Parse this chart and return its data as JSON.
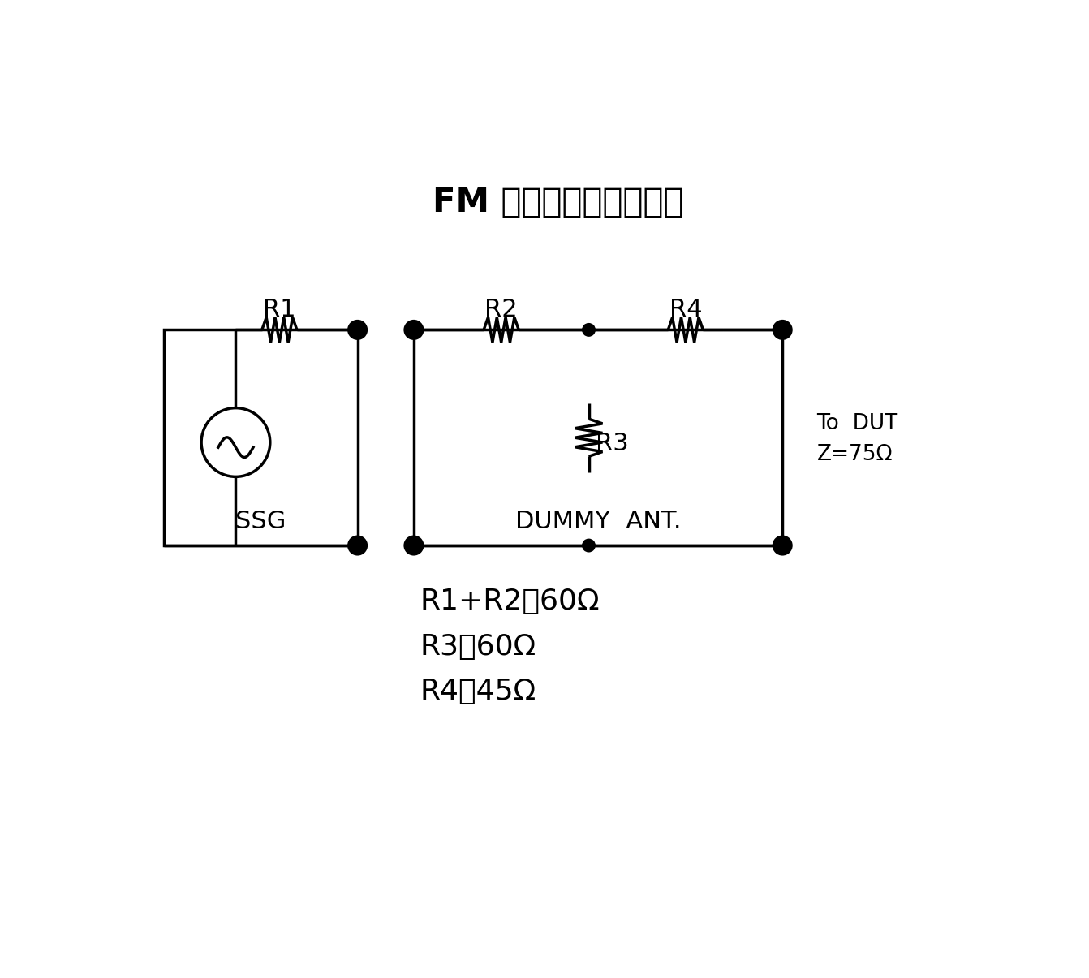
{
  "title": "FM ダミーアンテナ回路",
  "title_fontsize": 30,
  "bg_color": "#ffffff",
  "line_color": "#000000",
  "line_width": 2.5,
  "formula_lines": [
    "R1+R2＝60Ω",
    "R3＝60Ω",
    "R4＝45Ω"
  ],
  "formula_fontsize": 26,
  "ssg_label": "SSG",
  "dummy_label": "DUMMY  ANT.",
  "dut_line1": "To  DUT",
  "dut_line2": "Z=75Ω",
  "r1_label": "R1",
  "r2_label": "R2",
  "r3_label": "R3",
  "r4_label": "R4",
  "label_fontsize": 22
}
